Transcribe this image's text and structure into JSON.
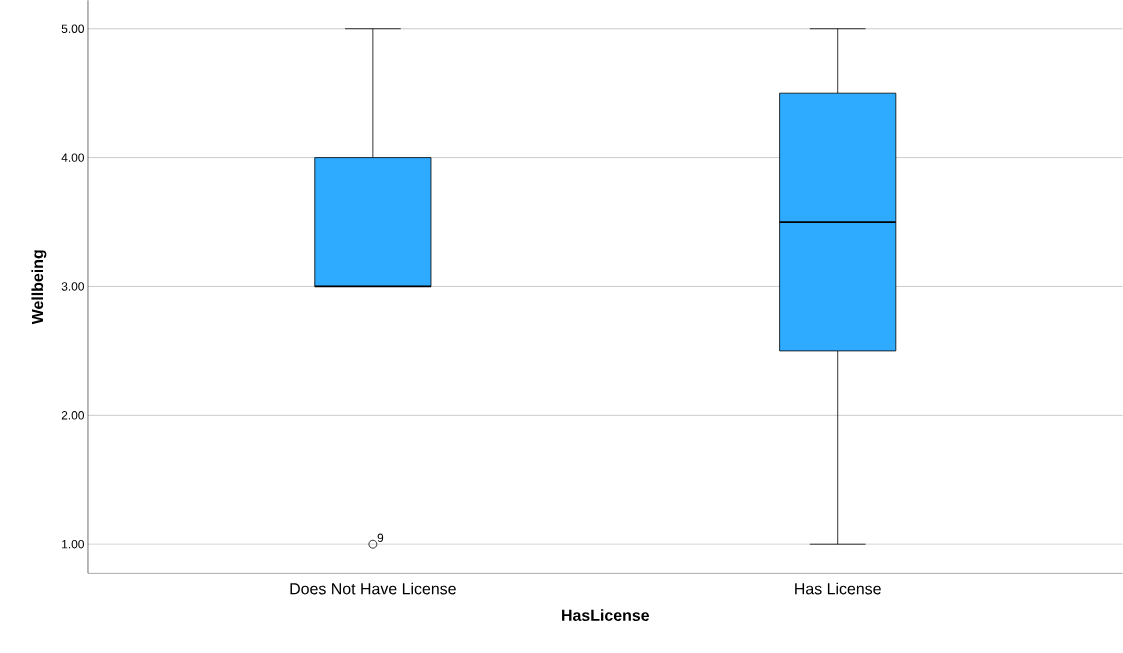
{
  "chart_data": {
    "type": "box",
    "xlabel": "HasLicense",
    "ylabel": "Wellbeing",
    "categories": [
      "Does Not Have License",
      "Has License"
    ],
    "boxes": [
      {
        "low": 3,
        "q1": 3,
        "median": 3,
        "q3": 4,
        "high": 5,
        "outliers": [
          1
        ]
      },
      {
        "low": 1,
        "q1": 2.5,
        "median": 3.5,
        "q3": 4.5,
        "high": 5
      }
    ],
    "color": "#2eabff",
    "ylim": [
      0.775,
      5.22
    ],
    "yticks": [
      {
        "value": 1,
        "label": "1.00"
      },
      {
        "value": 2,
        "label": "2.00"
      },
      {
        "value": 3,
        "label": "3.00"
      },
      {
        "value": 4,
        "label": "4.00"
      },
      {
        "value": 5,
        "label": "5.00"
      }
    ],
    "grid": "y",
    "annotations": [
      "9"
    ]
  }
}
